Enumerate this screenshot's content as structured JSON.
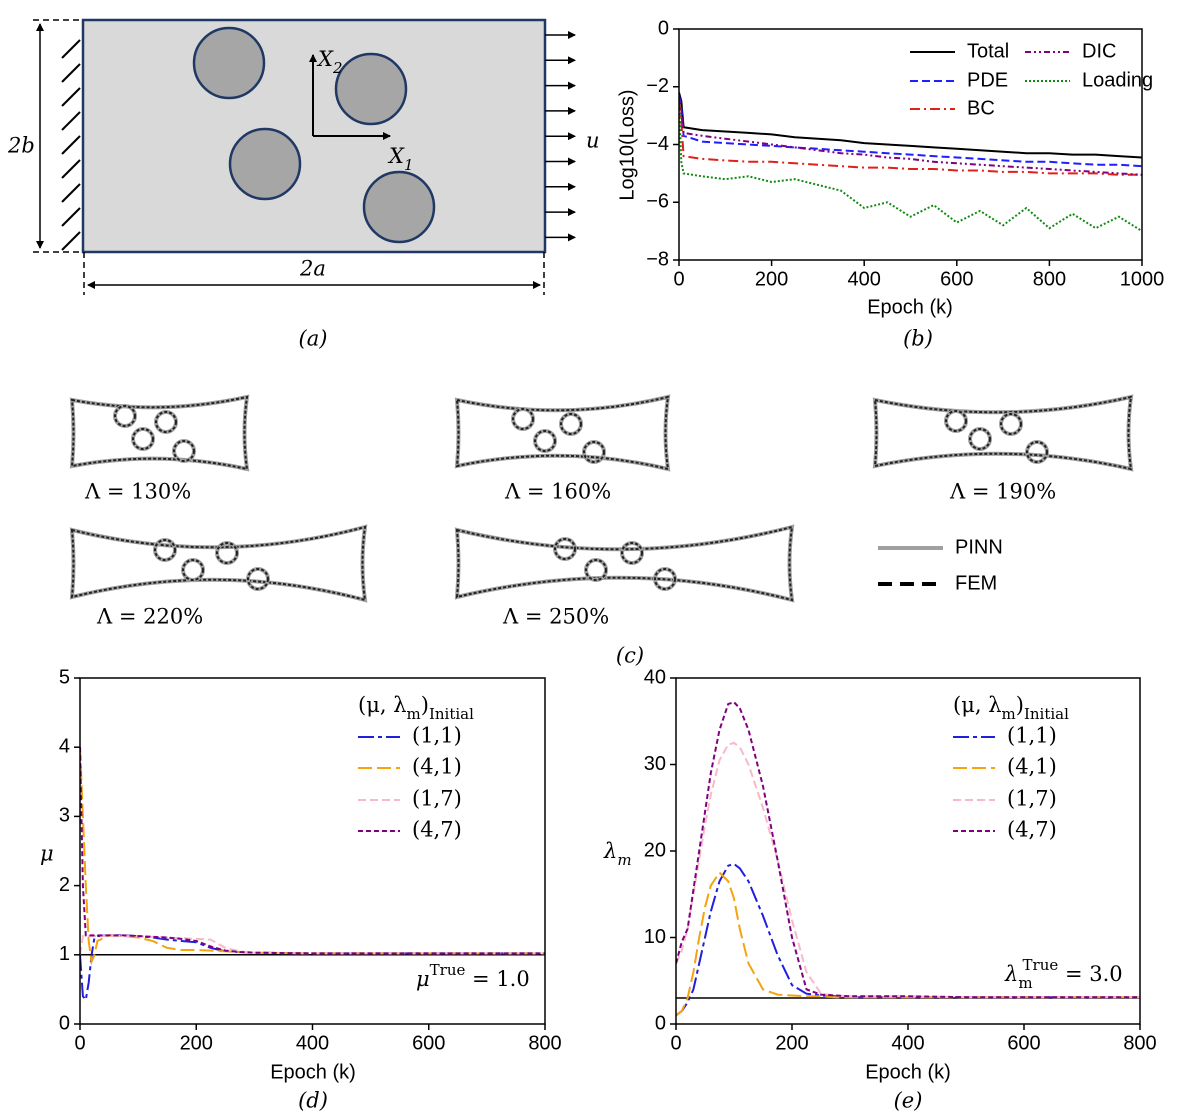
{
  "panel_a": {
    "x2_label": [
      "X",
      "2"
    ],
    "x1_label": [
      "X",
      "1"
    ],
    "u_label": "u",
    "height_label": "2b",
    "width_label": "2a",
    "caption": "(a)"
  },
  "panel_c": {
    "shapes": [
      {
        "label": "Λ = 130%"
      },
      {
        "label": "Λ = 160%"
      },
      {
        "label": "Λ = 190%"
      },
      {
        "label": "Λ = 220%"
      },
      {
        "label": "Λ = 250%"
      }
    ],
    "legend": [
      "PINN",
      "FEM"
    ],
    "caption": "(c)"
  },
  "chart_data": [
    {
      "type": "line",
      "caption": "(b)",
      "x_label": "Epoch (k)",
      "y_label": "Log10(Loss)",
      "x": [
        0,
        5,
        10,
        50,
        100,
        150,
        200,
        250,
        300,
        350,
        400,
        450,
        500,
        550,
        600,
        650,
        700,
        750,
        800,
        850,
        900,
        950,
        1000
      ],
      "xlim": [
        0,
        1000
      ],
      "xticks": [
        0,
        200,
        400,
        600,
        800,
        1000
      ],
      "ylim": [
        -8,
        0
      ],
      "yticks": [
        0,
        {
          "value": -2,
          "label": "−2"
        },
        {
          "value": -4,
          "label": "−4"
        },
        {
          "value": -6,
          "label": "−6"
        },
        {
          "value": -8,
          "label": "−8"
        }
      ],
      "series": [
        {
          "name": "Total",
          "color": "#000000",
          "style": "solid",
          "values": [
            -2.2,
            -2.5,
            -3.4,
            -3.5,
            -3.55,
            -3.6,
            -3.65,
            -3.75,
            -3.8,
            -3.85,
            -3.95,
            -4.0,
            -4.05,
            -4.1,
            -4.15,
            -4.2,
            -4.25,
            -4.3,
            -4.3,
            -4.35,
            -4.35,
            -4.4,
            -4.45
          ]
        },
        {
          "name": "PDE",
          "color": "#1f1fff",
          "style": "dashed",
          "values": [
            -2.3,
            -2.7,
            -3.7,
            -3.9,
            -3.95,
            -4.0,
            -4.05,
            -4.1,
            -4.15,
            -4.2,
            -4.25,
            -4.3,
            -4.35,
            -4.4,
            -4.45,
            -4.5,
            -4.55,
            -4.6,
            -4.6,
            -4.65,
            -4.7,
            -4.7,
            -4.75
          ]
        },
        {
          "name": "BC",
          "color": "#e0201a",
          "style": "dashdot",
          "values": [
            -2.5,
            -3.2,
            -4.4,
            -4.5,
            -4.55,
            -4.6,
            -4.6,
            -4.65,
            -4.7,
            -4.75,
            -4.8,
            -4.8,
            -4.85,
            -4.85,
            -4.9,
            -4.9,
            -4.95,
            -4.95,
            -5.0,
            -5.0,
            -5.0,
            -5.05,
            -5.05
          ]
        },
        {
          "name": "DIC",
          "color": "#800080",
          "style": "dashdotdot",
          "values": [
            -2.4,
            -2.9,
            -3.6,
            -3.7,
            -3.8,
            -3.9,
            -4.0,
            -4.1,
            -4.2,
            -4.3,
            -4.35,
            -4.45,
            -4.5,
            -4.6,
            -4.65,
            -4.7,
            -4.75,
            -4.8,
            -4.85,
            -4.9,
            -4.95,
            -5.0,
            -5.05
          ]
        },
        {
          "name": "Loading",
          "color": "#138a13",
          "style": "dotted",
          "values": [
            -2.5,
            -4.6,
            -5.0,
            -5.1,
            -5.2,
            -5.1,
            -5.3,
            -5.2,
            -5.4,
            -5.6,
            -6.2,
            -6.0,
            -6.5,
            -6.1,
            -6.7,
            -6.3,
            -6.8,
            -6.2,
            -6.9,
            -6.4,
            -6.9,
            -6.5,
            -7.0
          ]
        }
      ]
    },
    {
      "type": "line",
      "caption": "(d)",
      "x_label": "Epoch (k)",
      "y_label": "μ",
      "legend_title": [
        "(μ, λ",
        "m",
        ")",
        "Initial"
      ],
      "annotation": [
        "μ",
        "True",
        " = 1.0"
      ],
      "true_value": 1.0,
      "x": [
        0,
        5,
        10,
        15,
        20,
        25,
        30,
        50,
        75,
        100,
        125,
        150,
        175,
        200,
        225,
        250,
        275,
        300,
        400,
        500,
        600,
        700,
        800
      ],
      "xlim": [
        0,
        800
      ],
      "xticks": [
        0,
        200,
        400,
        600,
        800
      ],
      "ylim": [
        0,
        5
      ],
      "yticks": [
        0,
        1,
        2,
        3,
        4,
        5
      ],
      "series": [
        {
          "name": "(1,1)",
          "color": "#1f1fdd",
          "style": "longdashdot",
          "values": [
            1.0,
            0.4,
            0.35,
            0.6,
            1.0,
            1.25,
            1.27,
            1.28,
            1.28,
            1.27,
            1.25,
            1.22,
            1.2,
            1.18,
            1.1,
            1.05,
            1.04,
            1.03,
            1.02,
            1.02,
            1.02,
            1.02,
            1.02
          ]
        },
        {
          "name": "(4,1)",
          "color": "#f5a30f",
          "style": "longdash",
          "values": [
            4.0,
            3.0,
            2.0,
            1.2,
            0.9,
            1.0,
            1.2,
            1.28,
            1.27,
            1.25,
            1.2,
            1.1,
            1.07,
            1.07,
            1.06,
            1.05,
            1.04,
            1.03,
            1.02,
            1.02,
            1.02,
            1.02,
            1.02
          ]
        },
        {
          "name": "(1,7)",
          "color": "#f7b9c8",
          "style": "dashed",
          "values": [
            1.0,
            1.27,
            1.27,
            1.27,
            1.27,
            1.27,
            1.27,
            1.27,
            1.27,
            1.27,
            1.26,
            1.25,
            1.24,
            1.23,
            1.22,
            1.1,
            1.05,
            1.03,
            1.02,
            1.02,
            1.02,
            1.02,
            1.02
          ]
        },
        {
          "name": "(4,7)",
          "color": "#800080",
          "style": "shortdash",
          "values": [
            4.0,
            2.0,
            1.28,
            1.28,
            1.28,
            1.28,
            1.28,
            1.28,
            1.28,
            1.27,
            1.26,
            1.25,
            1.23,
            1.2,
            1.12,
            1.06,
            1.04,
            1.03,
            1.02,
            1.02,
            1.02,
            1.02,
            1.02
          ]
        }
      ]
    },
    {
      "type": "line",
      "caption": "(e)",
      "x_label": "Epoch (k)",
      "y_label": [
        "λ",
        "m"
      ],
      "legend_title": [
        "(μ, λ",
        "m",
        ")",
        "Initial"
      ],
      "annotation": [
        "λ",
        "m",
        "True",
        " = 3.0"
      ],
      "true_value": 3.0,
      "x": [
        0,
        10,
        20,
        30,
        40,
        50,
        60,
        75,
        90,
        100,
        110,
        125,
        150,
        175,
        200,
        225,
        250,
        275,
        300,
        400,
        500,
        600,
        700,
        800
      ],
      "xlim": [
        0,
        800
      ],
      "xticks": [
        0,
        200,
        400,
        600,
        800
      ],
      "ylim": [
        0,
        40
      ],
      "yticks": [
        0,
        10,
        20,
        30,
        40
      ],
      "series": [
        {
          "name": "(1,1)",
          "color": "#1f1fdd",
          "style": "longdashdot",
          "values": [
            1,
            1.5,
            2.5,
            4,
            7,
            10,
            13,
            16.5,
            18.3,
            18.5,
            18,
            16.5,
            12.5,
            8,
            4.5,
            3.5,
            3.3,
            3.2,
            3.1,
            3.1,
            3.1,
            3.1,
            3.1,
            3.1
          ]
        },
        {
          "name": "(4,1)",
          "color": "#f5a30f",
          "style": "longdash",
          "values": [
            1,
            1.5,
            3,
            6,
            10,
            13.5,
            16,
            17.5,
            16.5,
            14.5,
            11,
            7,
            4,
            3.4,
            3.3,
            3.2,
            3.2,
            3.1,
            3.1,
            3.1,
            3.1,
            3.1,
            3.1,
            3.1
          ]
        },
        {
          "name": "(1,7)",
          "color": "#f7b9c8",
          "style": "dashed",
          "values": [
            7,
            8.5,
            11,
            15,
            19,
            23,
            26.5,
            30.5,
            32.3,
            32.5,
            32,
            30,
            25,
            19,
            12,
            6,
            3.5,
            3.3,
            3.2,
            3.2,
            3.1,
            3.1,
            3.1,
            3.1
          ]
        },
        {
          "name": "(4,7)",
          "color": "#800080",
          "style": "shortdash",
          "values": [
            7,
            9.5,
            11,
            15.5,
            20,
            24.5,
            29,
            34,
            37,
            37.2,
            36.5,
            34,
            27.5,
            19,
            10,
            4,
            3.4,
            3.3,
            3.2,
            3.2,
            3.1,
            3.1,
            3.1,
            3.1
          ]
        }
      ]
    }
  ]
}
